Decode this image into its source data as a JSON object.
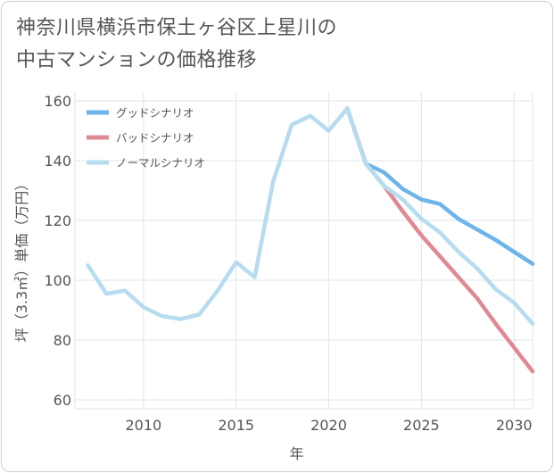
{
  "title_line1": "神奈川県横浜市保土ヶ谷区上星川の",
  "title_line2": "中古マンションの価格推移",
  "chart_data": {
    "type": "line",
    "xlabel": "年",
    "ylabel": "坪（3.3㎡）単価（万円）",
    "xlim": [
      2006.3,
      2031
    ],
    "ylim": [
      57,
      163
    ],
    "xticks": [
      2010,
      2015,
      2020,
      2025,
      2030
    ],
    "yticks": [
      60,
      80,
      100,
      120,
      140,
      160
    ],
    "grid": true,
    "legend_position": "top-left",
    "series": [
      {
        "name": "グッドシナリオ",
        "color": "#6cb4ea",
        "x": [
          2021,
          2022,
          2023,
          2024,
          2025,
          2026,
          2027,
          2028,
          2029,
          2030,
          2031
        ],
        "values": [
          157.5,
          139,
          136,
          130.5,
          127,
          125.5,
          120.5,
          117,
          113.5,
          109.5,
          105.5
        ]
      },
      {
        "name": "バッドシナリオ",
        "color": "#df8a93",
        "x": [
          2021,
          2022,
          2023,
          2024,
          2025,
          2026,
          2027,
          2028,
          2029,
          2030,
          2031
        ],
        "values": [
          157.5,
          139,
          131.5,
          123,
          115,
          108,
          101,
          94,
          85.5,
          77.5,
          69.5
        ]
      },
      {
        "name": "ノーマルシナリオ",
        "color": "#b6dcef",
        "x": [
          2007,
          2008,
          2009,
          2010,
          2011,
          2012,
          2013,
          2014,
          2015,
          2016,
          2017,
          2018,
          2019,
          2020,
          2021,
          2022,
          2023,
          2024,
          2025,
          2026,
          2027,
          2028,
          2029,
          2030,
          2031
        ],
        "values": [
          105,
          95.5,
          96.5,
          91,
          88,
          87,
          88.5,
          96.5,
          106,
          101,
          133,
          152,
          155,
          150,
          157.5,
          139,
          131.5,
          127,
          120.5,
          116,
          109.5,
          104,
          97,
          92.5,
          85.5
        ]
      }
    ]
  }
}
